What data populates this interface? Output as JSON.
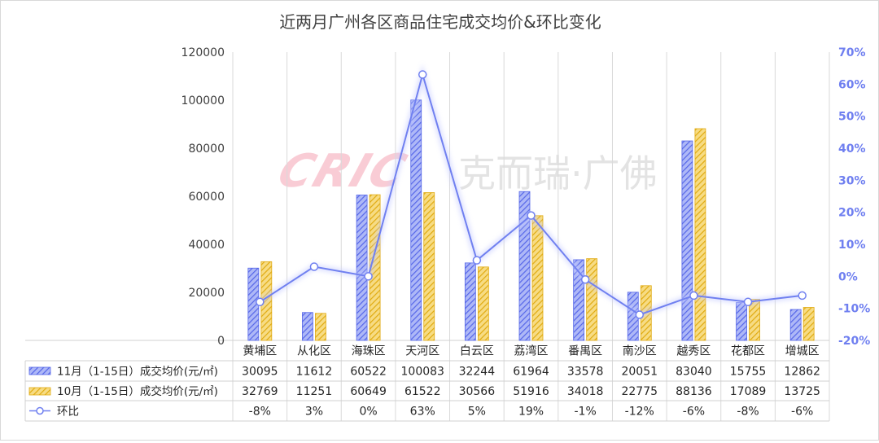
{
  "chart_data": {
    "type": "bar",
    "title": "近两月广州各区商品住宅成交均价&环比变化",
    "categories": [
      "黄埔区",
      "从化区",
      "海珠区",
      "天河区",
      "白云区",
      "荔湾区",
      "番禺区",
      "南沙区",
      "越秀区",
      "花都区",
      "增城区"
    ],
    "series": [
      {
        "name": "11月（1-15日）成交均价(元/㎡)",
        "type": "bar",
        "axis": "left",
        "color": "#6f7ff0",
        "values": [
          30095,
          11612,
          60522,
          100083,
          32244,
          61964,
          33578,
          20051,
          83040,
          15755,
          12862
        ]
      },
      {
        "name": "10月（1-15日）成交均价(元/㎡)",
        "type": "bar",
        "axis": "left",
        "color": "#f0c030",
        "values": [
          32769,
          11251,
          60649,
          61522,
          30566,
          51916,
          34018,
          22775,
          88136,
          17089,
          13725
        ]
      },
      {
        "name": "环比",
        "type": "line",
        "axis": "right",
        "color": "#7080f0",
        "values": [
          -8,
          3,
          0,
          63,
          5,
          19,
          -1,
          -12,
          -6,
          -8,
          -6
        ],
        "labels": [
          "-8%",
          "3%",
          "0%",
          "63%",
          "5%",
          "19%",
          "-1%",
          "-12%",
          "-6%",
          "-8%",
          "-6%"
        ]
      }
    ],
    "series_value_labels": [
      [
        "30095",
        "11612",
        "60522",
        "100083",
        "32244",
        "61964",
        "33578",
        "20051",
        "83040",
        "15755",
        "12862"
      ],
      [
        "32769",
        "11251",
        "60649",
        "61522",
        "30566",
        "51916",
        "34018",
        "22775",
        "88136",
        "17089",
        "13725"
      ]
    ],
    "y_left": {
      "min": 0,
      "max": 120000,
      "ticks": [
        0,
        20000,
        40000,
        60000,
        80000,
        100000,
        120000
      ],
      "tick_labels": [
        "0",
        "20000",
        "40000",
        "60000",
        "80000",
        "100000",
        "120000"
      ]
    },
    "y_right": {
      "min": -20,
      "max": 70,
      "ticks": [
        -20,
        -10,
        0,
        10,
        20,
        30,
        40,
        50,
        60,
        70
      ],
      "tick_labels": [
        "-20%",
        "-10%",
        "0%",
        "10%",
        "20%",
        "30%",
        "40%",
        "50%",
        "60%",
        "70%"
      ]
    },
    "grid": "vertical",
    "legend": "data-table",
    "watermark": "CRIC 克而瑞·广佛"
  }
}
